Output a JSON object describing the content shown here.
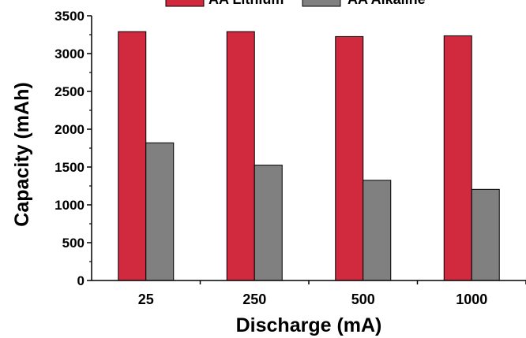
{
  "chart_data": {
    "type": "bar",
    "title": "",
    "xlabel": "Discharge (mA)",
    "ylabel": "Capacity (mAh)",
    "categories": [
      "25",
      "250",
      "500",
      "1000"
    ],
    "ylim": [
      0,
      3500
    ],
    "yticks": [
      0,
      500,
      1000,
      1500,
      2000,
      2500,
      3000,
      3500
    ],
    "grid": false,
    "legend_position": "top",
    "series": [
      {
        "name": "AA Lithium",
        "color": "#d12a3f",
        "values": [
          3290,
          3290,
          3225,
          3235
        ]
      },
      {
        "name": "AA Alkaline",
        "color": "#808080",
        "values": [
          1820,
          1525,
          1325,
          1205
        ]
      }
    ]
  }
}
